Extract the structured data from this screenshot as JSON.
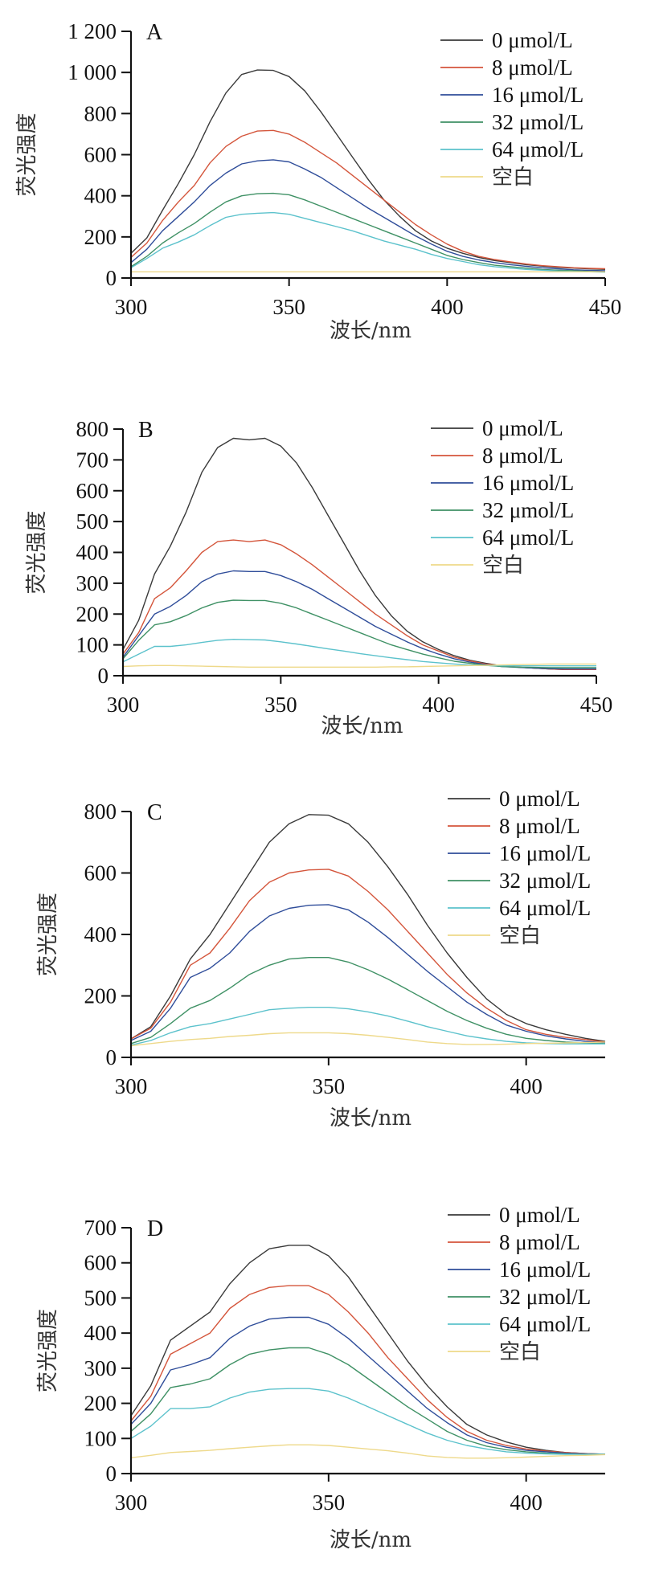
{
  "legend": [
    "0 μmol/L",
    "8 μmol/L",
    "16 μmol/L",
    "32 μmol/L",
    "64 μmol/L",
    "空白"
  ],
  "colors": [
    "#3a3a3a",
    "#d4553b",
    "#2f4d9a",
    "#3f9165",
    "#5cc2cc",
    "#eed98a"
  ],
  "chart_data": [
    {
      "type": "line",
      "panel": "A",
      "title": "",
      "xlabel": "波长/nm",
      "ylabel": "荧光强度",
      "xlim": [
        300,
        450
      ],
      "ylim": [
        0,
        1200
      ],
      "xticks": [
        300,
        350,
        400,
        450
      ],
      "xtick_labels": [
        "300",
        "350",
        "400",
        "450"
      ],
      "yticks": [
        0,
        200,
        400,
        600,
        800,
        1000,
        1200
      ],
      "ytick_labels": [
        "0",
        "200",
        "400",
        "600",
        "800",
        "1 000",
        "1 200"
      ],
      "legend_position": "top-right",
      "grid": false,
      "x": [
        300,
        305,
        310,
        315,
        320,
        325,
        330,
        335,
        340,
        345,
        350,
        355,
        360,
        365,
        370,
        375,
        380,
        385,
        390,
        395,
        400,
        405,
        410,
        415,
        420,
        425,
        430,
        435,
        440,
        445,
        450
      ],
      "series": [
        {
          "name": "0 μmol/L",
          "values": [
            120,
            195,
            330,
            460,
            600,
            760,
            900,
            990,
            1012,
            1010,
            980,
            910,
            810,
            700,
            590,
            480,
            380,
            300,
            230,
            180,
            145,
            120,
            100,
            85,
            75,
            65,
            58,
            52,
            48,
            45,
            42
          ]
        },
        {
          "name": "8 μmol/L",
          "values": [
            100,
            170,
            280,
            370,
            450,
            560,
            640,
            690,
            715,
            718,
            700,
            660,
            610,
            560,
            500,
            440,
            380,
            320,
            260,
            210,
            165,
            130,
            105,
            90,
            78,
            68,
            60,
            55,
            50,
            47,
            45
          ]
        },
        {
          "name": "16 μmol/L",
          "values": [
            75,
            140,
            230,
            300,
            370,
            450,
            510,
            555,
            570,
            575,
            565,
            530,
            490,
            440,
            390,
            340,
            295,
            250,
            205,
            165,
            130,
            105,
            88,
            75,
            65,
            57,
            50,
            45,
            40,
            37,
            35
          ]
        },
        {
          "name": "32 μmol/L",
          "values": [
            55,
            105,
            170,
            220,
            265,
            320,
            370,
            400,
            410,
            412,
            405,
            380,
            350,
            320,
            290,
            260,
            230,
            200,
            170,
            140,
            110,
            90,
            75,
            62,
            55,
            48,
            42,
            38,
            35,
            32,
            30
          ]
        },
        {
          "name": "64 μmol/L",
          "values": [
            50,
            95,
            145,
            175,
            210,
            255,
            295,
            310,
            315,
            318,
            310,
            290,
            270,
            250,
            230,
            205,
            180,
            160,
            140,
            115,
            95,
            80,
            65,
            55,
            48,
            42,
            38,
            34,
            32,
            30,
            28
          ]
        },
        {
          "name": "空白",
          "values": [
            30,
            30,
            30,
            30,
            30,
            30,
            30,
            30,
            30,
            30,
            30,
            30,
            30,
            30,
            30,
            30,
            30,
            30,
            30,
            30,
            30,
            30,
            30,
            30,
            30,
            30,
            30,
            30,
            30,
            30,
            30
          ]
        }
      ]
    },
    {
      "type": "line",
      "panel": "B",
      "title": "",
      "xlabel": "波长/nm",
      "ylabel": "荧光强度",
      "xlim": [
        300,
        450
      ],
      "ylim": [
        0,
        800
      ],
      "xticks": [
        300,
        350,
        400,
        450
      ],
      "xtick_labels": [
        "300",
        "350",
        "400",
        "450"
      ],
      "yticks": [
        0,
        100,
        200,
        300,
        400,
        500,
        600,
        700,
        800
      ],
      "ytick_labels": [
        "0",
        "100",
        "200",
        "300",
        "400",
        "500",
        "600",
        "700",
        "800"
      ],
      "legend_position": "top-right",
      "grid": false,
      "x": [
        300,
        305,
        310,
        315,
        320,
        325,
        330,
        335,
        340,
        345,
        350,
        355,
        360,
        365,
        370,
        375,
        380,
        385,
        390,
        395,
        400,
        405,
        410,
        415,
        420,
        425,
        430,
        435,
        440,
        445,
        450
      ],
      "series": [
        {
          "name": "0 μmol/L",
          "values": [
            85,
            180,
            330,
            420,
            530,
            660,
            740,
            770,
            765,
            770,
            745,
            690,
            610,
            520,
            430,
            340,
            260,
            195,
            145,
            110,
            85,
            65,
            50,
            40,
            32,
            28,
            25,
            22,
            20,
            20,
            20
          ]
        },
        {
          "name": "8 μmol/L",
          "values": [
            70,
            140,
            250,
            285,
            340,
            400,
            435,
            440,
            435,
            440,
            425,
            395,
            360,
            320,
            280,
            240,
            200,
            165,
            130,
            100,
            80,
            60,
            48,
            38,
            32,
            28,
            25,
            22,
            20,
            20,
            20
          ]
        },
        {
          "name": "16 μmol/L",
          "values": [
            60,
            130,
            200,
            225,
            260,
            305,
            330,
            340,
            338,
            338,
            325,
            305,
            280,
            250,
            220,
            190,
            160,
            135,
            110,
            88,
            70,
            55,
            44,
            36,
            30,
            27,
            25,
            23,
            22,
            22,
            22
          ]
        },
        {
          "name": "32 μmol/L",
          "values": [
            55,
            115,
            165,
            175,
            195,
            220,
            238,
            245,
            244,
            244,
            235,
            220,
            200,
            180,
            160,
            140,
            120,
            100,
            85,
            70,
            58,
            47,
            40,
            34,
            30,
            28,
            27,
            26,
            26,
            26,
            26
          ]
        },
        {
          "name": "64 μmol/L",
          "values": [
            45,
            70,
            95,
            95,
            100,
            108,
            115,
            118,
            117,
            116,
            110,
            103,
            95,
            87,
            80,
            72,
            65,
            58,
            52,
            46,
            42,
            38,
            35,
            33,
            32,
            32,
            32,
            32,
            32,
            32,
            32
          ]
        },
        {
          "name": "空白",
          "values": [
            30,
            32,
            33,
            33,
            32,
            31,
            30,
            29,
            28,
            28,
            28,
            28,
            28,
            28,
            28,
            28,
            28,
            29,
            29,
            30,
            31,
            32,
            33,
            34,
            35,
            36,
            37,
            38,
            38,
            38,
            38
          ]
        }
      ]
    },
    {
      "type": "line",
      "panel": "C",
      "title": "",
      "xlabel": "波长/nm",
      "ylabel": "荧光强度",
      "xlim": [
        300,
        420
      ],
      "ylim": [
        0,
        800
      ],
      "xticks": [
        300,
        350,
        400
      ],
      "xtick_labels": [
        "300",
        "350",
        "400"
      ],
      "yticks": [
        0,
        200,
        400,
        600,
        800
      ],
      "ytick_labels": [
        "0",
        "200",
        "400",
        "600",
        "800"
      ],
      "legend_position": "top-right",
      "grid": false,
      "x": [
        300,
        305,
        310,
        315,
        320,
        325,
        330,
        335,
        340,
        345,
        350,
        355,
        360,
        365,
        370,
        375,
        380,
        385,
        390,
        395,
        400,
        405,
        410,
        415,
        420
      ],
      "series": [
        {
          "name": "0 μmol/L",
          "values": [
            60,
            100,
            200,
            320,
            400,
            500,
            600,
            700,
            760,
            790,
            788,
            760,
            700,
            620,
            530,
            430,
            340,
            260,
            190,
            140,
            110,
            90,
            75,
            62,
            52
          ]
        },
        {
          "name": "8 μmol/L",
          "values": [
            60,
            95,
            180,
            300,
            340,
            420,
            510,
            570,
            600,
            610,
            612,
            590,
            540,
            480,
            410,
            340,
            270,
            210,
            160,
            120,
            90,
            75,
            65,
            58,
            50
          ]
        },
        {
          "name": "16 μmol/L",
          "values": [
            55,
            85,
            160,
            260,
            290,
            340,
            410,
            460,
            485,
            495,
            497,
            480,
            440,
            390,
            335,
            280,
            230,
            180,
            140,
            105,
            85,
            70,
            60,
            52,
            48
          ]
        },
        {
          "name": "32 μmol/L",
          "values": [
            45,
            65,
            110,
            160,
            185,
            225,
            270,
            300,
            320,
            325,
            325,
            310,
            285,
            255,
            220,
            185,
            150,
            120,
            95,
            75,
            62,
            55,
            50,
            47,
            45
          ]
        },
        {
          "name": "64 μmol/L",
          "values": [
            40,
            55,
            80,
            100,
            110,
            125,
            140,
            155,
            160,
            163,
            163,
            158,
            148,
            135,
            118,
            100,
            85,
            70,
            60,
            52,
            47,
            45,
            44,
            44,
            44
          ]
        },
        {
          "name": "空白",
          "values": [
            38,
            45,
            52,
            58,
            62,
            68,
            72,
            77,
            80,
            80,
            80,
            77,
            72,
            65,
            58,
            50,
            45,
            42,
            42,
            43,
            45,
            46,
            47,
            48,
            50
          ]
        }
      ]
    },
    {
      "type": "line",
      "panel": "D",
      "title": "",
      "xlabel": "波长/nm",
      "ylabel": "荧光强度",
      "xlim": [
        300,
        420
      ],
      "ylim": [
        0,
        700
      ],
      "xticks": [
        300,
        350,
        400
      ],
      "xtick_labels": [
        "300",
        "350",
        "400"
      ],
      "yticks": [
        0,
        100,
        200,
        300,
        400,
        500,
        600,
        700
      ],
      "ytick_labels": [
        "0",
        "100",
        "200",
        "300",
        "400",
        "500",
        "600",
        "700"
      ],
      "legend_position": "top-right",
      "grid": false,
      "x": [
        300,
        305,
        310,
        315,
        320,
        325,
        330,
        335,
        340,
        345,
        350,
        355,
        360,
        365,
        370,
        375,
        380,
        385,
        390,
        395,
        400,
        405,
        410,
        415,
        420
      ],
      "series": [
        {
          "name": "0 μmol/L",
          "values": [
            165,
            250,
            380,
            420,
            460,
            540,
            600,
            640,
            650,
            650,
            620,
            560,
            480,
            400,
            320,
            250,
            190,
            140,
            110,
            90,
            75,
            66,
            60,
            57,
            55
          ]
        },
        {
          "name": "8 μmol/L",
          "values": [
            150,
            220,
            340,
            370,
            400,
            470,
            510,
            530,
            535,
            535,
            510,
            460,
            400,
            330,
            270,
            210,
            160,
            120,
            95,
            80,
            70,
            64,
            60,
            57,
            55
          ]
        },
        {
          "name": "16 μmol/L",
          "values": [
            140,
            200,
            295,
            310,
            330,
            385,
            420,
            440,
            445,
            445,
            425,
            385,
            335,
            285,
            235,
            185,
            145,
            110,
            88,
            75,
            66,
            62,
            58,
            56,
            55
          ]
        },
        {
          "name": "32 μmol/L",
          "values": [
            120,
            170,
            245,
            255,
            270,
            310,
            340,
            352,
            358,
            358,
            340,
            310,
            270,
            230,
            190,
            155,
            120,
            95,
            78,
            68,
            62,
            58,
            56,
            55,
            55
          ]
        },
        {
          "name": "64 μmol/L",
          "values": [
            100,
            135,
            185,
            185,
            190,
            215,
            232,
            240,
            242,
            242,
            235,
            215,
            190,
            165,
            140,
            115,
            95,
            80,
            70,
            62,
            58,
            56,
            55,
            55,
            55
          ]
        },
        {
          "name": "空白",
          "values": [
            45,
            52,
            60,
            63,
            66,
            71,
            75,
            79,
            82,
            82,
            80,
            75,
            70,
            65,
            58,
            50,
            46,
            44,
            44,
            45,
            47,
            49,
            51,
            52,
            54
          ]
        }
      ]
    }
  ]
}
